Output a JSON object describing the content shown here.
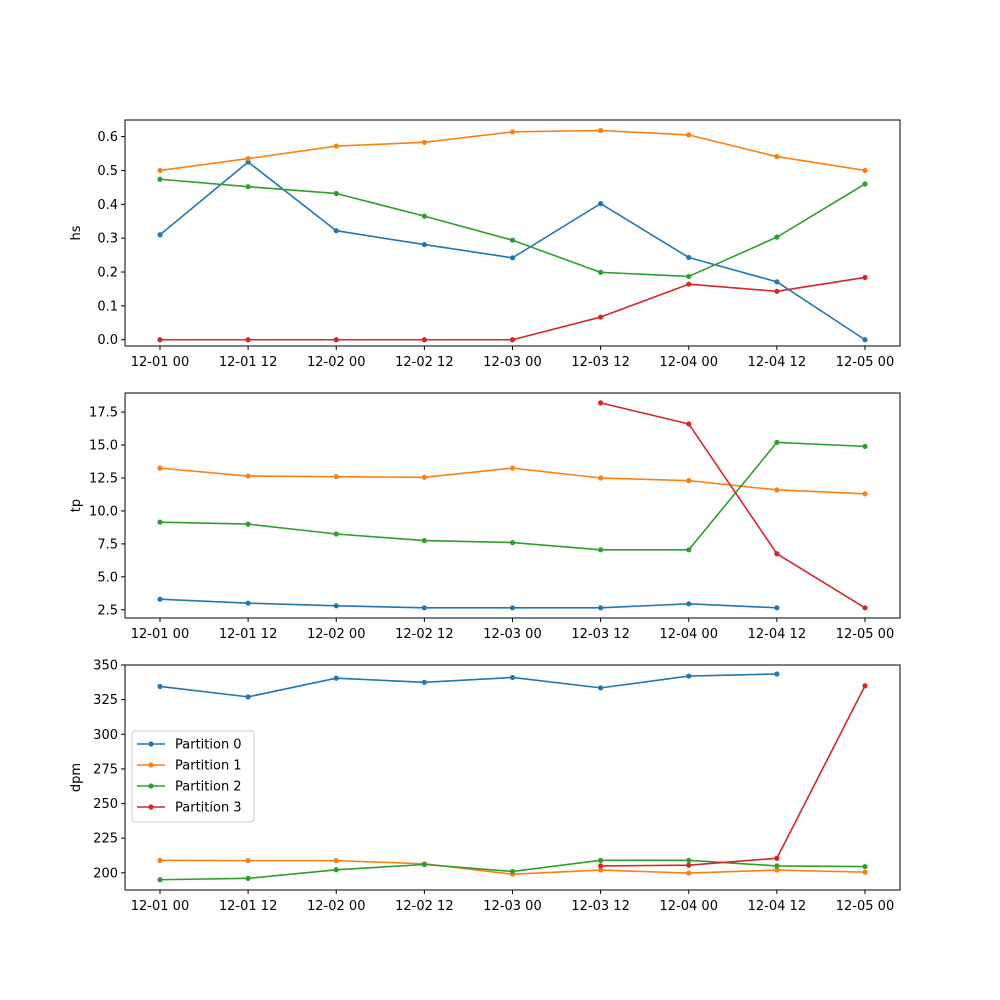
{
  "x_tick_labels": [
    "12-01 00",
    "12-01 12",
    "12-02 00",
    "12-02 12",
    "12-03 00",
    "12-03 12",
    "12-04 00",
    "12-04 12",
    "12-05 00"
  ],
  "series_names": [
    "Partition 0",
    "Partition 1",
    "Partition 2",
    "Partition 3"
  ],
  "colors": [
    "#1f77b4",
    "#ff7f0e",
    "#2ca02c",
    "#d62728"
  ],
  "legend": {
    "location": "center-left of bottom panel"
  },
  "chart_data": [
    {
      "type": "line",
      "ylabel": "hs",
      "ylim": [
        -0.0185,
        0.649
      ],
      "yticks": [
        0.0,
        0.1,
        0.2,
        0.3,
        0.4,
        0.5,
        0.6
      ],
      "ytick_labels": [
        "0.0",
        "0.1",
        "0.2",
        "0.3",
        "0.4",
        "0.5",
        "0.6"
      ],
      "x": [
        "12-01 00",
        "12-01 12",
        "12-02 00",
        "12-02 12",
        "12-03 00",
        "12-03 12",
        "12-04 00",
        "12-04 12",
        "12-05 00"
      ],
      "series": [
        {
          "name": "Partition 0",
          "values": [
            0.31,
            0.525,
            0.322,
            0.281,
            0.242,
            0.402,
            0.243,
            0.171,
            0.0
          ]
        },
        {
          "name": "Partition 1",
          "values": [
            0.5,
            0.535,
            0.572,
            0.583,
            0.614,
            0.618,
            0.605,
            0.541,
            0.5
          ]
        },
        {
          "name": "Partition 2",
          "values": [
            0.474,
            0.452,
            0.432,
            0.365,
            0.294,
            0.199,
            0.187,
            0.303,
            0.46
          ]
        },
        {
          "name": "Partition 3",
          "values": [
            0.0,
            0.0,
            0.0,
            0.0,
            0.0,
            0.067,
            0.164,
            0.143,
            0.184
          ]
        }
      ]
    },
    {
      "type": "line",
      "ylabel": "tp",
      "ylim": [
        1.875,
        18.95
      ],
      "yticks": [
        2.5,
        5.0,
        7.5,
        10.0,
        12.5,
        15.0,
        17.5
      ],
      "ytick_labels": [
        "2.5",
        "5.0",
        "7.5",
        "10.0",
        "12.5",
        "15.0",
        "17.5"
      ],
      "x": [
        "12-01 00",
        "12-01 12",
        "12-02 00",
        "12-02 12",
        "12-03 00",
        "12-03 12",
        "12-04 00",
        "12-04 12",
        "12-05 00"
      ],
      "series": [
        {
          "name": "Partition 0",
          "values": [
            3.3,
            3.0,
            2.8,
            2.65,
            2.65,
            2.65,
            2.95,
            2.65,
            null
          ]
        },
        {
          "name": "Partition 1",
          "values": [
            13.25,
            12.65,
            12.6,
            12.55,
            13.25,
            12.5,
            12.3,
            11.6,
            11.3
          ]
        },
        {
          "name": "Partition 2",
          "values": [
            9.15,
            9.0,
            8.25,
            7.75,
            7.6,
            7.05,
            7.05,
            15.2,
            14.9
          ]
        },
        {
          "name": "Partition 3",
          "values": [
            null,
            null,
            null,
            null,
            null,
            18.2,
            16.6,
            6.75,
            2.65
          ]
        }
      ]
    },
    {
      "type": "line",
      "ylabel": "dpm",
      "ylim": [
        187.6,
        350.0
      ],
      "yticks": [
        200,
        225,
        250,
        275,
        300,
        325,
        350
      ],
      "ytick_labels": [
        "200",
        "225",
        "250",
        "275",
        "300",
        "325",
        "350"
      ],
      "x": [
        "12-01 00",
        "12-01 12",
        "12-02 00",
        "12-02 12",
        "12-03 00",
        "12-03 12",
        "12-04 00",
        "12-04 12",
        "12-05 00"
      ],
      "series": [
        {
          "name": "Partition 0",
          "values": [
            334.5,
            327.0,
            340.5,
            337.5,
            341.0,
            333.5,
            342.0,
            343.5,
            null
          ]
        },
        {
          "name": "Partition 1",
          "values": [
            209.0,
            208.8,
            208.8,
            206.5,
            199.0,
            202.0,
            199.8,
            202.0,
            200.5
          ]
        },
        {
          "name": "Partition 2",
          "values": [
            195.0,
            196.0,
            202.2,
            206.0,
            201.0,
            209.0,
            209.0,
            205.0,
            204.5
          ]
        },
        {
          "name": "Partition 3",
          "values": [
            null,
            null,
            null,
            null,
            null,
            205.0,
            205.5,
            210.5,
            335.0
          ]
        }
      ],
      "show_legend": true
    }
  ]
}
